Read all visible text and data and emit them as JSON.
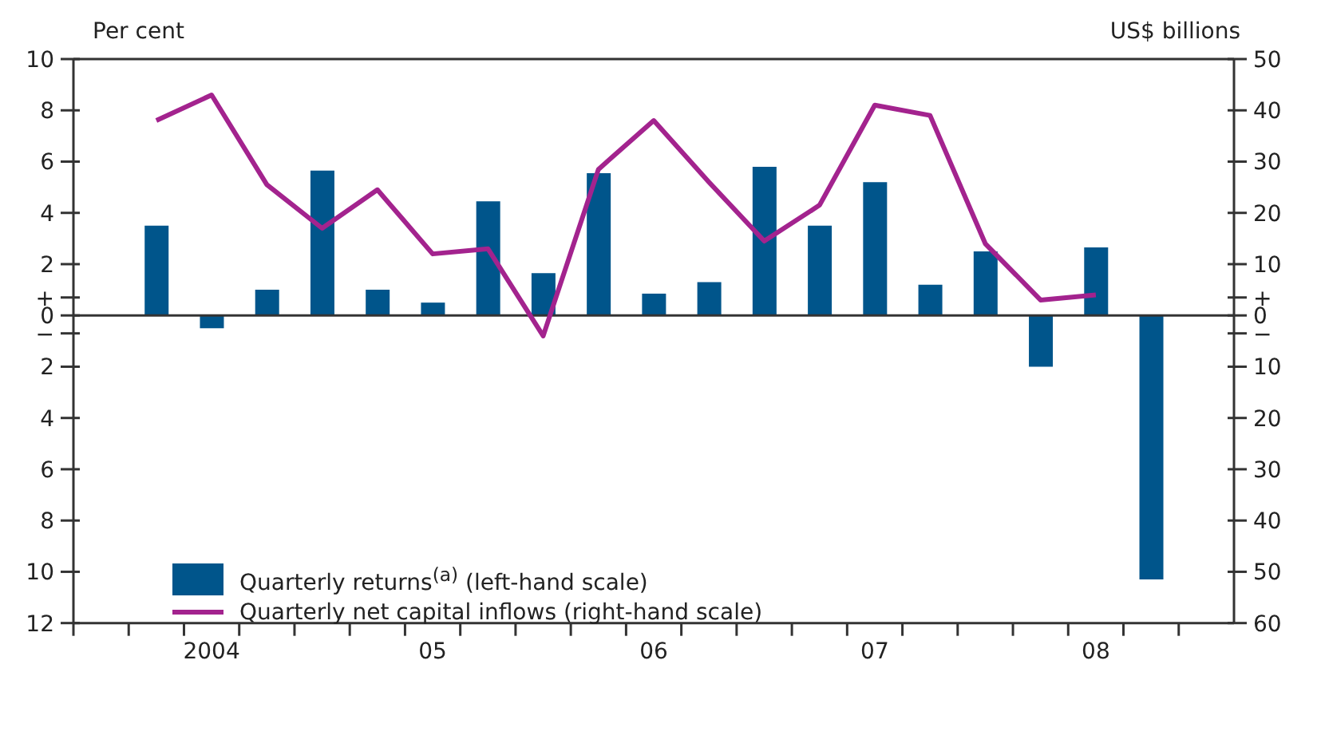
{
  "chart_data": {
    "type": "bar",
    "ylabel": "Per cent",
    "y2label": "US$ billions",
    "categories": [
      null,
      null,
      "2004",
      null,
      null,
      null,
      "05",
      null,
      null,
      null,
      "06",
      null,
      null,
      null,
      "07",
      null,
      null,
      null,
      "08",
      null,
      null
    ],
    "series": [
      {
        "name": "Quarterly returns$^{(a)}$ (left-hand scale)",
        "color": "#00558b",
        "values": [
          null,
          3.5,
          -0.5,
          1.0,
          5.65,
          1.0,
          0.5,
          4.45,
          1.65,
          5.55,
          0.85,
          1.3,
          5.8,
          3.5,
          5.2,
          1.2,
          2.5,
          -2.0,
          2.65,
          -10.3,
          null
        ]
      },
      {
        "name": "Quarterly net capital inflows (right-hand scale)",
        "type": "line",
        "axis": "y2",
        "color": "#a3238e",
        "values": [
          null,
          38,
          43,
          25.5,
          17,
          24.5,
          12,
          13,
          -4,
          28.5,
          38,
          26,
          14.5,
          21.5,
          41,
          39,
          14,
          3,
          4,
          null,
          null
        ]
      }
    ],
    "ylim": [
      -12,
      10
    ],
    "yticks": [
      {
        "value": -12,
        "label": "12"
      },
      {
        "value": -10,
        "label": "10"
      },
      {
        "value": -8,
        "label": "8"
      },
      {
        "value": -6,
        "label": "6"
      },
      {
        "value": -4,
        "label": "4"
      },
      {
        "value": -2,
        "label": "2"
      },
      {
        "value": -0.7,
        "label": "−"
      },
      0,
      {
        "value": 0.7,
        "label": "+"
      },
      2,
      4,
      6,
      8,
      10
    ],
    "y2lim": [
      -60,
      50
    ],
    "y2ticks": [
      {
        "value": -60,
        "label": "60"
      },
      {
        "value": -50,
        "label": "50"
      },
      {
        "value": -40,
        "label": "40"
      },
      {
        "value": -30,
        "label": "30"
      },
      {
        "value": -20,
        "label": "20"
      },
      {
        "value": -10,
        "label": "10"
      },
      {
        "value": -3.5,
        "label": "−"
      },
      0,
      {
        "value": 3.5,
        "label": "+"
      },
      10,
      20,
      30,
      40,
      50
    ],
    "ref_lines": [
      {
        "axis": "y",
        "value": 0,
        "color": "#333333"
      }
    ],
    "legend": "bottom left",
    "marker": "none",
    "line_style": "solid"
  }
}
